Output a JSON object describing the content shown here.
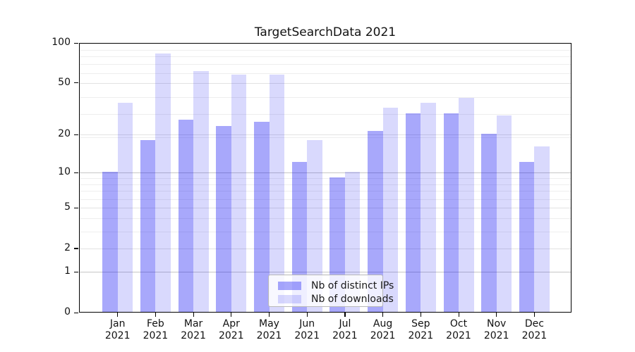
{
  "title": "TargetSearchData 2021",
  "colors": {
    "ips": "rgba(10,10,245,0.355)",
    "downloads": "rgba(10,10,245,0.155)",
    "grid_major": "#c6c6c6",
    "grid_mid": "#e2e2e2",
    "grid_minor": "#eeeeee",
    "axis": "#000000"
  },
  "legend": {
    "items": [
      {
        "label": "Nb of distinct IPs",
        "key": "ips"
      },
      {
        "label": "Nb of downloads",
        "key": "downloads"
      }
    ]
  },
  "y_axis": {
    "tick_labels": [
      "100",
      "50",
      "20",
      "10",
      "5",
      "2",
      "1",
      "0"
    ],
    "tick_values": [
      100,
      50,
      20,
      10,
      5,
      2,
      1,
      0
    ],
    "major_grid_values": [
      1,
      10
    ],
    "mid_grid_values": [
      2,
      5,
      20,
      50
    ],
    "minor_grid_values": [
      3,
      4,
      6,
      7,
      8,
      9,
      19,
      29,
      39,
      59,
      69,
      79,
      89
    ]
  },
  "x_axis": {
    "months": [
      "Jan",
      "Feb",
      "Mar",
      "Apr",
      "May",
      "Jun",
      "Jul",
      "Aug",
      "Sep",
      "Oct",
      "Nov",
      "Dec"
    ],
    "year": "2021"
  },
  "chart_data": {
    "type": "bar",
    "title": "TargetSearchData 2021",
    "categories": [
      "Jan 2021",
      "Feb 2021",
      "Mar 2021",
      "Apr 2021",
      "May 2021",
      "Jun 2021",
      "Jul 2021",
      "Aug 2021",
      "Sep 2021",
      "Oct 2021",
      "Nov 2021",
      "Dec 2021"
    ],
    "series": [
      {
        "name": "Nb of distinct IPs",
        "key": "ips",
        "values": [
          10,
          18,
          26,
          23,
          25,
          12,
          9,
          21,
          29,
          29,
          20,
          12
        ]
      },
      {
        "name": "Nb of downloads",
        "key": "downloads",
        "values": [
          35,
          82,
          61,
          57,
          57,
          18,
          10,
          32,
          35,
          38,
          28,
          16
        ]
      }
    ],
    "ylim": [
      0,
      100
    ],
    "yscale": "log1p (symlog-like): position proportional to log10(1+y); ticks 0,1,2,5,10,20,50,100",
    "grid": true,
    "legend_position": "lower center"
  }
}
